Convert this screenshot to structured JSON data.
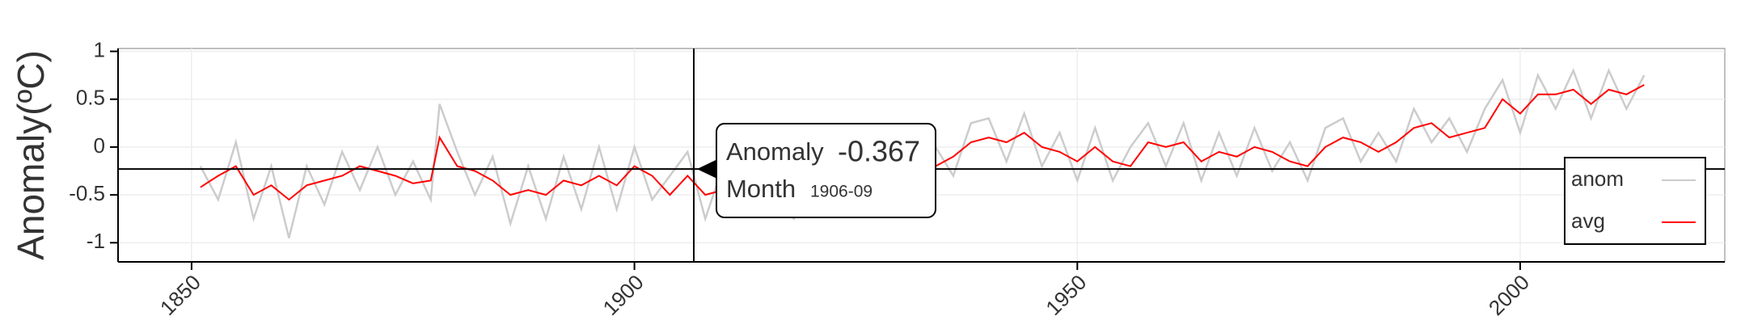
{
  "chart_data": {
    "type": "line",
    "ylabel": "Anomaly(ºC)",
    "x": [
      1851,
      1853,
      1855,
      1857,
      1859,
      1861,
      1863,
      1865,
      1867,
      1869,
      1871,
      1873,
      1875,
      1877,
      1878,
      1880,
      1882,
      1884,
      1886,
      1888,
      1890,
      1892,
      1894,
      1896,
      1898,
      1900,
      1902,
      1904,
      1906,
      1908,
      1910,
      1912,
      1914,
      1916,
      1918,
      1920,
      1922,
      1924,
      1926,
      1928,
      1930,
      1932,
      1934,
      1936,
      1938,
      1940,
      1942,
      1944,
      1946,
      1948,
      1950,
      1952,
      1954,
      1956,
      1958,
      1960,
      1962,
      1964,
      1966,
      1968,
      1970,
      1972,
      1974,
      1976,
      1978,
      1980,
      1982,
      1984,
      1986,
      1988,
      1990,
      1992,
      1994,
      1996,
      1998,
      2000,
      2002,
      2004,
      2006,
      2008,
      2010,
      2012,
      2014
    ],
    "series": [
      {
        "name": "anom",
        "color": "#cccccc",
        "values": [
          -0.2,
          -0.55,
          0.05,
          -0.75,
          -0.2,
          -0.95,
          -0.2,
          -0.6,
          -0.05,
          -0.45,
          0.0,
          -0.5,
          -0.15,
          -0.55,
          0.45,
          -0.05,
          -0.5,
          -0.1,
          -0.8,
          -0.2,
          -0.75,
          -0.1,
          -0.65,
          0.0,
          -0.65,
          0.0,
          -0.55,
          -0.3,
          -0.05,
          -0.75,
          -0.2,
          -0.7,
          -0.05,
          -0.6,
          -0.75,
          -0.1,
          -0.55,
          -0.05,
          0.05,
          -0.4,
          0.1,
          -0.3,
          0.0,
          -0.3,
          0.25,
          0.3,
          -0.15,
          0.35,
          -0.2,
          0.15,
          -0.35,
          0.2,
          -0.35,
          0.0,
          0.25,
          -0.2,
          0.25,
          -0.35,
          0.15,
          -0.3,
          0.2,
          -0.25,
          0.05,
          -0.35,
          0.2,
          0.3,
          -0.15,
          0.15,
          -0.15,
          0.4,
          0.05,
          0.3,
          -0.05,
          0.4,
          0.7,
          0.15,
          0.75,
          0.4,
          0.8,
          0.3,
          0.8,
          0.4,
          0.75
        ]
      },
      {
        "name": "avg",
        "color": "#ff0000",
        "values": [
          -0.42,
          -0.3,
          -0.2,
          -0.5,
          -0.4,
          -0.55,
          -0.4,
          -0.35,
          -0.3,
          -0.2,
          -0.25,
          -0.3,
          -0.38,
          -0.35,
          0.1,
          -0.2,
          -0.25,
          -0.35,
          -0.5,
          -0.45,
          -0.5,
          -0.35,
          -0.4,
          -0.3,
          -0.4,
          -0.2,
          -0.3,
          -0.5,
          -0.3,
          -0.5,
          -0.45,
          -0.45,
          -0.3,
          -0.35,
          -0.45,
          -0.3,
          -0.3,
          -0.3,
          -0.15,
          -0.2,
          -0.15,
          -0.1,
          -0.2,
          -0.1,
          0.05,
          0.1,
          0.05,
          0.15,
          0.0,
          -0.05,
          -0.15,
          0.0,
          -0.15,
          -0.2,
          0.05,
          0.0,
          0.05,
          -0.15,
          -0.05,
          -0.1,
          0.0,
          -0.05,
          -0.15,
          -0.2,
          0.0,
          0.1,
          0.05,
          -0.05,
          0.05,
          0.2,
          0.25,
          0.1,
          0.15,
          0.2,
          0.5,
          0.35,
          0.55,
          0.55,
          0.6,
          0.45,
          0.6,
          0.55,
          0.65
        ]
      }
    ],
    "xlim": [
      1841.7,
      2023.1
    ],
    "xticks": [
      1850,
      1900,
      1950,
      2000
    ],
    "ylim": [
      -1.2,
      1.03
    ],
    "yticks": [
      -1,
      -0.5,
      0,
      0.5,
      1
    ],
    "grid": true,
    "legend": "bottom-right",
    "tooltip": {
      "x": 1906.7,
      "y": -0.23,
      "label": "Anomaly",
      "value": -0.367,
      "month_label": "Month",
      "month": "1906-09"
    }
  }
}
